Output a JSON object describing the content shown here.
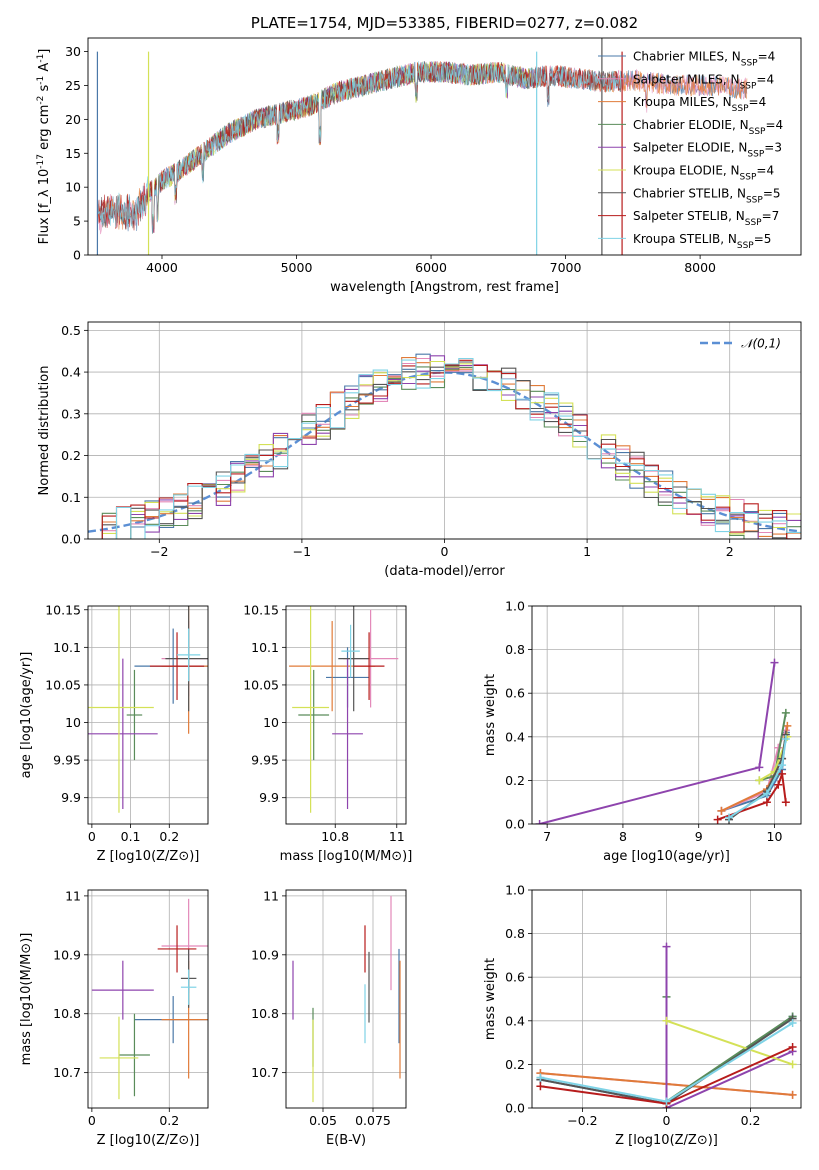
{
  "title": "PLATE=1754, MJD=53385, FIBERID=0277, z=0.082",
  "models": [
    {
      "name": "Chabrier MILES, N_SSP=4",
      "color": "#4a78a8"
    },
    {
      "name": "Salpeter MILES, N_SSP=4",
      "color": "#e389b9"
    },
    {
      "name": "Kroupa MILES, N_SSP=4",
      "color": "#e07b39"
    },
    {
      "name": "Chabrier ELODIE, N_SSP=4",
      "color": "#5a8c5a"
    },
    {
      "name": "Salpeter ELODIE, N_SSP=3",
      "color": "#8e44ad"
    },
    {
      "name": "Kroupa ELODIE, N_SSP=4",
      "color": "#d4e157"
    },
    {
      "name": "Chabrier STELIB, N_SSP=5",
      "color": "#555555"
    },
    {
      "name": "Salpeter STELIB, N_SSP=7",
      "color": "#b71c1c"
    },
    {
      "name": "Kroupa STELIB, N_SSP=5",
      "color": "#7fd3e6"
    }
  ],
  "chart_data": [
    {
      "id": "spectrum",
      "type": "line",
      "title": "PLATE=1754, MJD=53385, FIBERID=0277, z=0.082",
      "xlabel": "wavelength [Angstrom, rest frame]",
      "ylabel": "Flux [f_λ 10^-17 erg cm^-2 s^-1 A^-1]",
      "xlim": [
        3450,
        8750
      ],
      "ylim": [
        0,
        32
      ],
      "xticks": [
        4000,
        5000,
        6000,
        7000,
        8000
      ],
      "yticks": [
        0,
        5,
        10,
        15,
        20,
        25,
        30
      ],
      "grid": false,
      "legend": "upper right",
      "continuum": [
        [
          3520,
          6
        ],
        [
          3650,
          6.5
        ],
        [
          3800,
          6
        ],
        [
          3900,
          9
        ],
        [
          4000,
          11
        ],
        [
          4100,
          12
        ],
        [
          4300,
          15
        ],
        [
          4500,
          18
        ],
        [
          4700,
          20
        ],
        [
          4900,
          21
        ],
        [
          5000,
          21.5
        ],
        [
          5100,
          22
        ],
        [
          5300,
          24
        ],
        [
          5500,
          25
        ],
        [
          5700,
          26
        ],
        [
          5900,
          27
        ],
        [
          6100,
          27
        ],
        [
          6300,
          26.5
        ],
        [
          6500,
          27
        ],
        [
          6700,
          26
        ],
        [
          6900,
          26.5
        ],
        [
          7100,
          26
        ],
        [
          7300,
          25.5
        ],
        [
          7500,
          25.8
        ],
        [
          7800,
          25
        ],
        [
          8100,
          25
        ],
        [
          8300,
          24.5
        ]
      ],
      "series": [
        {
          "name": "Chabrier MILES, N_SSP=4",
          "range": [
            3520,
            8350
          ]
        },
        {
          "name": "Salpeter MILES, N_SSP=4",
          "range": [
            3520,
            8350
          ]
        },
        {
          "name": "Kroupa MILES, N_SSP=4",
          "range": [
            3520,
            8350
          ]
        },
        {
          "name": "Chabrier ELODIE, N_SSP=4",
          "range": [
            3900,
            6800
          ]
        },
        {
          "name": "Salpeter ELODIE, N_SSP=3",
          "range": [
            3900,
            6800
          ]
        },
        {
          "name": "Kroupa ELODIE, N_SSP=4",
          "range": [
            3900,
            6800
          ]
        },
        {
          "name": "Chabrier STELIB, N_SSP=5",
          "range": [
            3520,
            7420
          ]
        },
        {
          "name": "Salpeter STELIB, N_SSP=7",
          "range": [
            3520,
            7420
          ]
        },
        {
          "name": "Kroupa STELIB, N_SSP=5",
          "range": [
            3520,
            7420
          ]
        }
      ]
    },
    {
      "id": "residuals",
      "type": "histogram",
      "xlabel": "(data-model)/error",
      "ylabel": "Normed distribution",
      "xlim": [
        -2.5,
        2.5
      ],
      "ylim": [
        0,
        0.52
      ],
      "xticks": [
        -2,
        -1,
        0,
        1,
        2
      ],
      "yticks": [
        0.0,
        0.1,
        0.2,
        0.3,
        0.4,
        0.5
      ],
      "grid": true,
      "legend": "upper right",
      "reference": {
        "name": "𝒩(0,1)",
        "color": "#5b8fd4",
        "style": "dashed"
      },
      "bin_width": 0.1
    },
    {
      "id": "age_vs_z",
      "type": "errorbar",
      "xlabel": "Z [log10(Z/Z⊙)]",
      "ylabel": "age [log10(age/yr)]",
      "xlim": [
        -0.01,
        0.3
      ],
      "ylim": [
        9.865,
        10.155
      ],
      "xticks": [
        0.0,
        0.1,
        0.2
      ],
      "yticks": [
        9.9,
        9.95,
        10.0,
        10.05,
        10.1,
        10.15
      ],
      "grid": true,
      "points": [
        {
          "x": 0.21,
          "xerr": 0.1,
          "y": 10.075,
          "yerr": 0.05
        },
        {
          "x": 0.25,
          "xerr": 0.07,
          "y": 10.085,
          "yerr": 0.05
        },
        {
          "x": 0.25,
          "xerr": 0.07,
          "y": 10.075,
          "yerr": 0.09
        },
        {
          "x": 0.11,
          "xerr": 0.02,
          "y": 10.01,
          "yerr": 0.06
        },
        {
          "x": 0.08,
          "xerr": 0.09,
          "y": 9.985,
          "yerr": 0.1
        },
        {
          "x": 0.07,
          "xerr": 0.09,
          "y": 10.02,
          "yerr": 0.14
        },
        {
          "x": 0.25,
          "xerr": 0.06,
          "y": 10.085,
          "yerr": 0.07
        },
        {
          "x": 0.22,
          "xerr": 0.07,
          "y": 10.075,
          "yerr": 0.045
        },
        {
          "x": 0.25,
          "xerr": 0.03,
          "y": 10.09,
          "yerr": 0.035
        }
      ]
    },
    {
      "id": "age_vs_mass",
      "type": "errorbar",
      "xlabel": "mass [log10(M/M⊙)]",
      "ylabel": "",
      "xlim": [
        10.64,
        11.03
      ],
      "ylim": [
        9.865,
        10.155
      ],
      "xticks": [
        10.8,
        11.0
      ],
      "yticks": [
        9.9,
        9.95,
        10.0,
        10.05,
        10.1,
        10.15
      ],
      "grid": true,
      "points": [
        {
          "x": 10.84,
          "xerr": 0.07,
          "y": 10.06,
          "yerr": 0.04
        },
        {
          "x": 10.915,
          "xerr": 0.09,
          "y": 10.085,
          "yerr": 0.065
        },
        {
          "x": 10.79,
          "xerr": 0.14,
          "y": 10.075,
          "yerr": 0.06
        },
        {
          "x": 10.73,
          "xerr": 0.05,
          "y": 10.01,
          "yerr": 0.06
        },
        {
          "x": 10.84,
          "xerr": 0.05,
          "y": 9.985,
          "yerr": 0.1
        },
        {
          "x": 10.72,
          "xerr": 0.06,
          "y": 10.02,
          "yerr": 0.14
        },
        {
          "x": 10.86,
          "xerr": 0.05,
          "y": 10.085,
          "yerr": 0.07
        },
        {
          "x": 10.91,
          "xerr": 0.05,
          "y": 10.075,
          "yerr": 0.045
        },
        {
          "x": 10.85,
          "xerr": 0.03,
          "y": 10.095,
          "yerr": 0.035
        }
      ]
    },
    {
      "id": "mass_weight_vs_age",
      "type": "line",
      "xlabel": "age [log10(age/yr)]",
      "ylabel": "mass weight",
      "xlim": [
        6.8,
        10.35
      ],
      "ylim": [
        0,
        1
      ],
      "xticks": [
        7,
        8,
        9,
        10
      ],
      "yticks": [
        0.0,
        0.2,
        0.4,
        0.6,
        0.8,
        1.0
      ],
      "grid": true,
      "series": [
        {
          "points": [
            [
              9.3,
              0.06
            ],
            [
              9.9,
              0.13
            ],
            [
              10.1,
              0.25
            ],
            [
              10.15,
              0.42
            ]
          ]
        },
        {
          "points": [
            [
              9.3,
              0.06
            ],
            [
              9.9,
              0.15
            ],
            [
              10.05,
              0.35
            ],
            [
              10.15,
              0.43
            ]
          ]
        },
        {
          "points": [
            [
              9.3,
              0.06
            ],
            [
              9.9,
              0.16
            ],
            [
              10.1,
              0.3
            ],
            [
              10.17,
              0.45
            ]
          ]
        },
        {
          "points": [
            [
              9.8,
              0.2
            ],
            [
              10.0,
              0.22
            ],
            [
              10.15,
              0.51
            ]
          ]
        },
        {
          "points": [
            [
              6.9,
              0.0
            ],
            [
              9.8,
              0.26
            ],
            [
              10.0,
              0.74
            ]
          ]
        },
        {
          "points": [
            [
              9.8,
              0.2
            ],
            [
              10.0,
              0.24
            ],
            [
              10.17,
              0.4
            ]
          ]
        },
        {
          "points": [
            [
              9.4,
              0.02
            ],
            [
              9.9,
              0.15
            ],
            [
              10.1,
              0.3
            ],
            [
              10.15,
              0.41
            ]
          ]
        },
        {
          "points": [
            [
              9.25,
              0.02
            ],
            [
              9.9,
              0.1
            ],
            [
              10.05,
              0.18
            ],
            [
              10.1,
              0.23
            ],
            [
              10.15,
              0.1
            ]
          ]
        },
        {
          "points": [
            [
              9.4,
              0.03
            ],
            [
              9.9,
              0.14
            ],
            [
              10.1,
              0.27
            ],
            [
              10.15,
              0.39
            ]
          ]
        }
      ]
    },
    {
      "id": "mass_vs_z",
      "type": "errorbar",
      "xlabel": "Z [log10(Z/Z⊙)]",
      "ylabel": "mass [log10(M/M⊙)]",
      "xlim": [
        -0.01,
        0.3
      ],
      "ylim": [
        10.64,
        11.01
      ],
      "xticks": [
        0.0,
        0.2
      ],
      "yticks": [
        10.7,
        10.8,
        10.9,
        11.0
      ],
      "grid": true,
      "points": [
        {
          "x": 0.21,
          "xerr": 0.1,
          "y": 10.79,
          "yerr": 0.04
        },
        {
          "x": 0.25,
          "xerr": 0.07,
          "y": 10.915,
          "yerr": 0.08
        },
        {
          "x": 0.25,
          "xerr": 0.07,
          "y": 10.79,
          "yerr": 0.1
        },
        {
          "x": 0.11,
          "xerr": 0.04,
          "y": 10.73,
          "yerr": 0.07
        },
        {
          "x": 0.08,
          "xerr": 0.08,
          "y": 10.84,
          "yerr": 0.05
        },
        {
          "x": 0.07,
          "xerr": 0.05,
          "y": 10.725,
          "yerr": 0.07
        },
        {
          "x": 0.25,
          "xerr": 0.02,
          "y": 10.86,
          "yerr": 0.05
        },
        {
          "x": 0.22,
          "xerr": 0.05,
          "y": 10.91,
          "yerr": 0.04
        },
        {
          "x": 0.25,
          "xerr": 0.02,
          "y": 10.845,
          "yerr": 0.03
        }
      ]
    },
    {
      "id": "mass_vs_ebv",
      "type": "errorbar",
      "xlabel": "E(B-V)",
      "ylabel": "",
      "xlim": [
        0.0315,
        0.0915
      ],
      "ylim": [
        10.64,
        11.01
      ],
      "xticks": [
        0.05,
        0.075
      ],
      "yticks": [
        10.7,
        10.8,
        10.9,
        11.0
      ],
      "grid": true,
      "points": [
        {
          "x": 0.088,
          "y": 10.83,
          "yerr": 0.08
        },
        {
          "x": 0.084,
          "y": 10.92,
          "yerr": 0.08
        },
        {
          "x": 0.0885,
          "y": 10.79,
          "yerr": 0.1
        },
        {
          "x": 0.045,
          "y": 10.76,
          "yerr": 0.05
        },
        {
          "x": 0.035,
          "y": 10.84,
          "yerr": 0.05
        },
        {
          "x": 0.045,
          "y": 10.72,
          "yerr": 0.07
        },
        {
          "x": 0.073,
          "y": 10.845,
          "yerr": 0.06
        },
        {
          "x": 0.071,
          "y": 10.91,
          "yerr": 0.04
        },
        {
          "x": 0.071,
          "y": 10.8,
          "yerr": 0.05
        }
      ]
    },
    {
      "id": "mass_weight_vs_z",
      "type": "line",
      "xlabel": "Z [log10(Z/Z⊙)]",
      "ylabel": "mass weight",
      "xlim": [
        -0.32,
        0.32
      ],
      "ylim": [
        0,
        1
      ],
      "xticks": [
        -0.2,
        0.0,
        0.2
      ],
      "yticks": [
        0.0,
        0.2,
        0.4,
        0.6,
        0.8,
        1.0
      ],
      "grid": true,
      "series": [
        {
          "points": [
            [
              -0.3,
              0.13
            ],
            [
              0.0,
              0.02
            ],
            [
              0.3,
              0.42
            ]
          ]
        },
        {
          "points": [
            [
              -0.3,
              0.16
            ],
            [
              0.0,
              0.11
            ],
            [
              0.3,
              0.06
            ]
          ]
        },
        {
          "points": [
            [
              -0.3,
              0.16
            ],
            [
              0.0,
              0.11
            ],
            [
              0.3,
              0.06
            ]
          ]
        },
        {
          "points": [
            [
              0.0,
              0.51
            ],
            [
              0.0,
              0.03
            ],
            [
              0.3,
              0.42
            ]
          ]
        },
        {
          "points": [
            [
              0.0,
              0.74
            ],
            [
              0.0,
              0.0
            ],
            [
              0.3,
              0.26
            ]
          ]
        },
        {
          "points": [
            [
              0.0,
              0.4
            ],
            [
              0.3,
              0.2
            ]
          ]
        },
        {
          "points": [
            [
              -0.3,
              0.13
            ],
            [
              0.0,
              0.02
            ],
            [
              0.3,
              0.41
            ]
          ]
        },
        {
          "points": [
            [
              -0.3,
              0.1
            ],
            [
              0.0,
              0.02
            ],
            [
              0.3,
              0.28
            ]
          ]
        },
        {
          "points": [
            [
              -0.3,
              0.14
            ],
            [
              0.0,
              0.03
            ],
            [
              0.3,
              0.39
            ]
          ]
        }
      ]
    }
  ]
}
